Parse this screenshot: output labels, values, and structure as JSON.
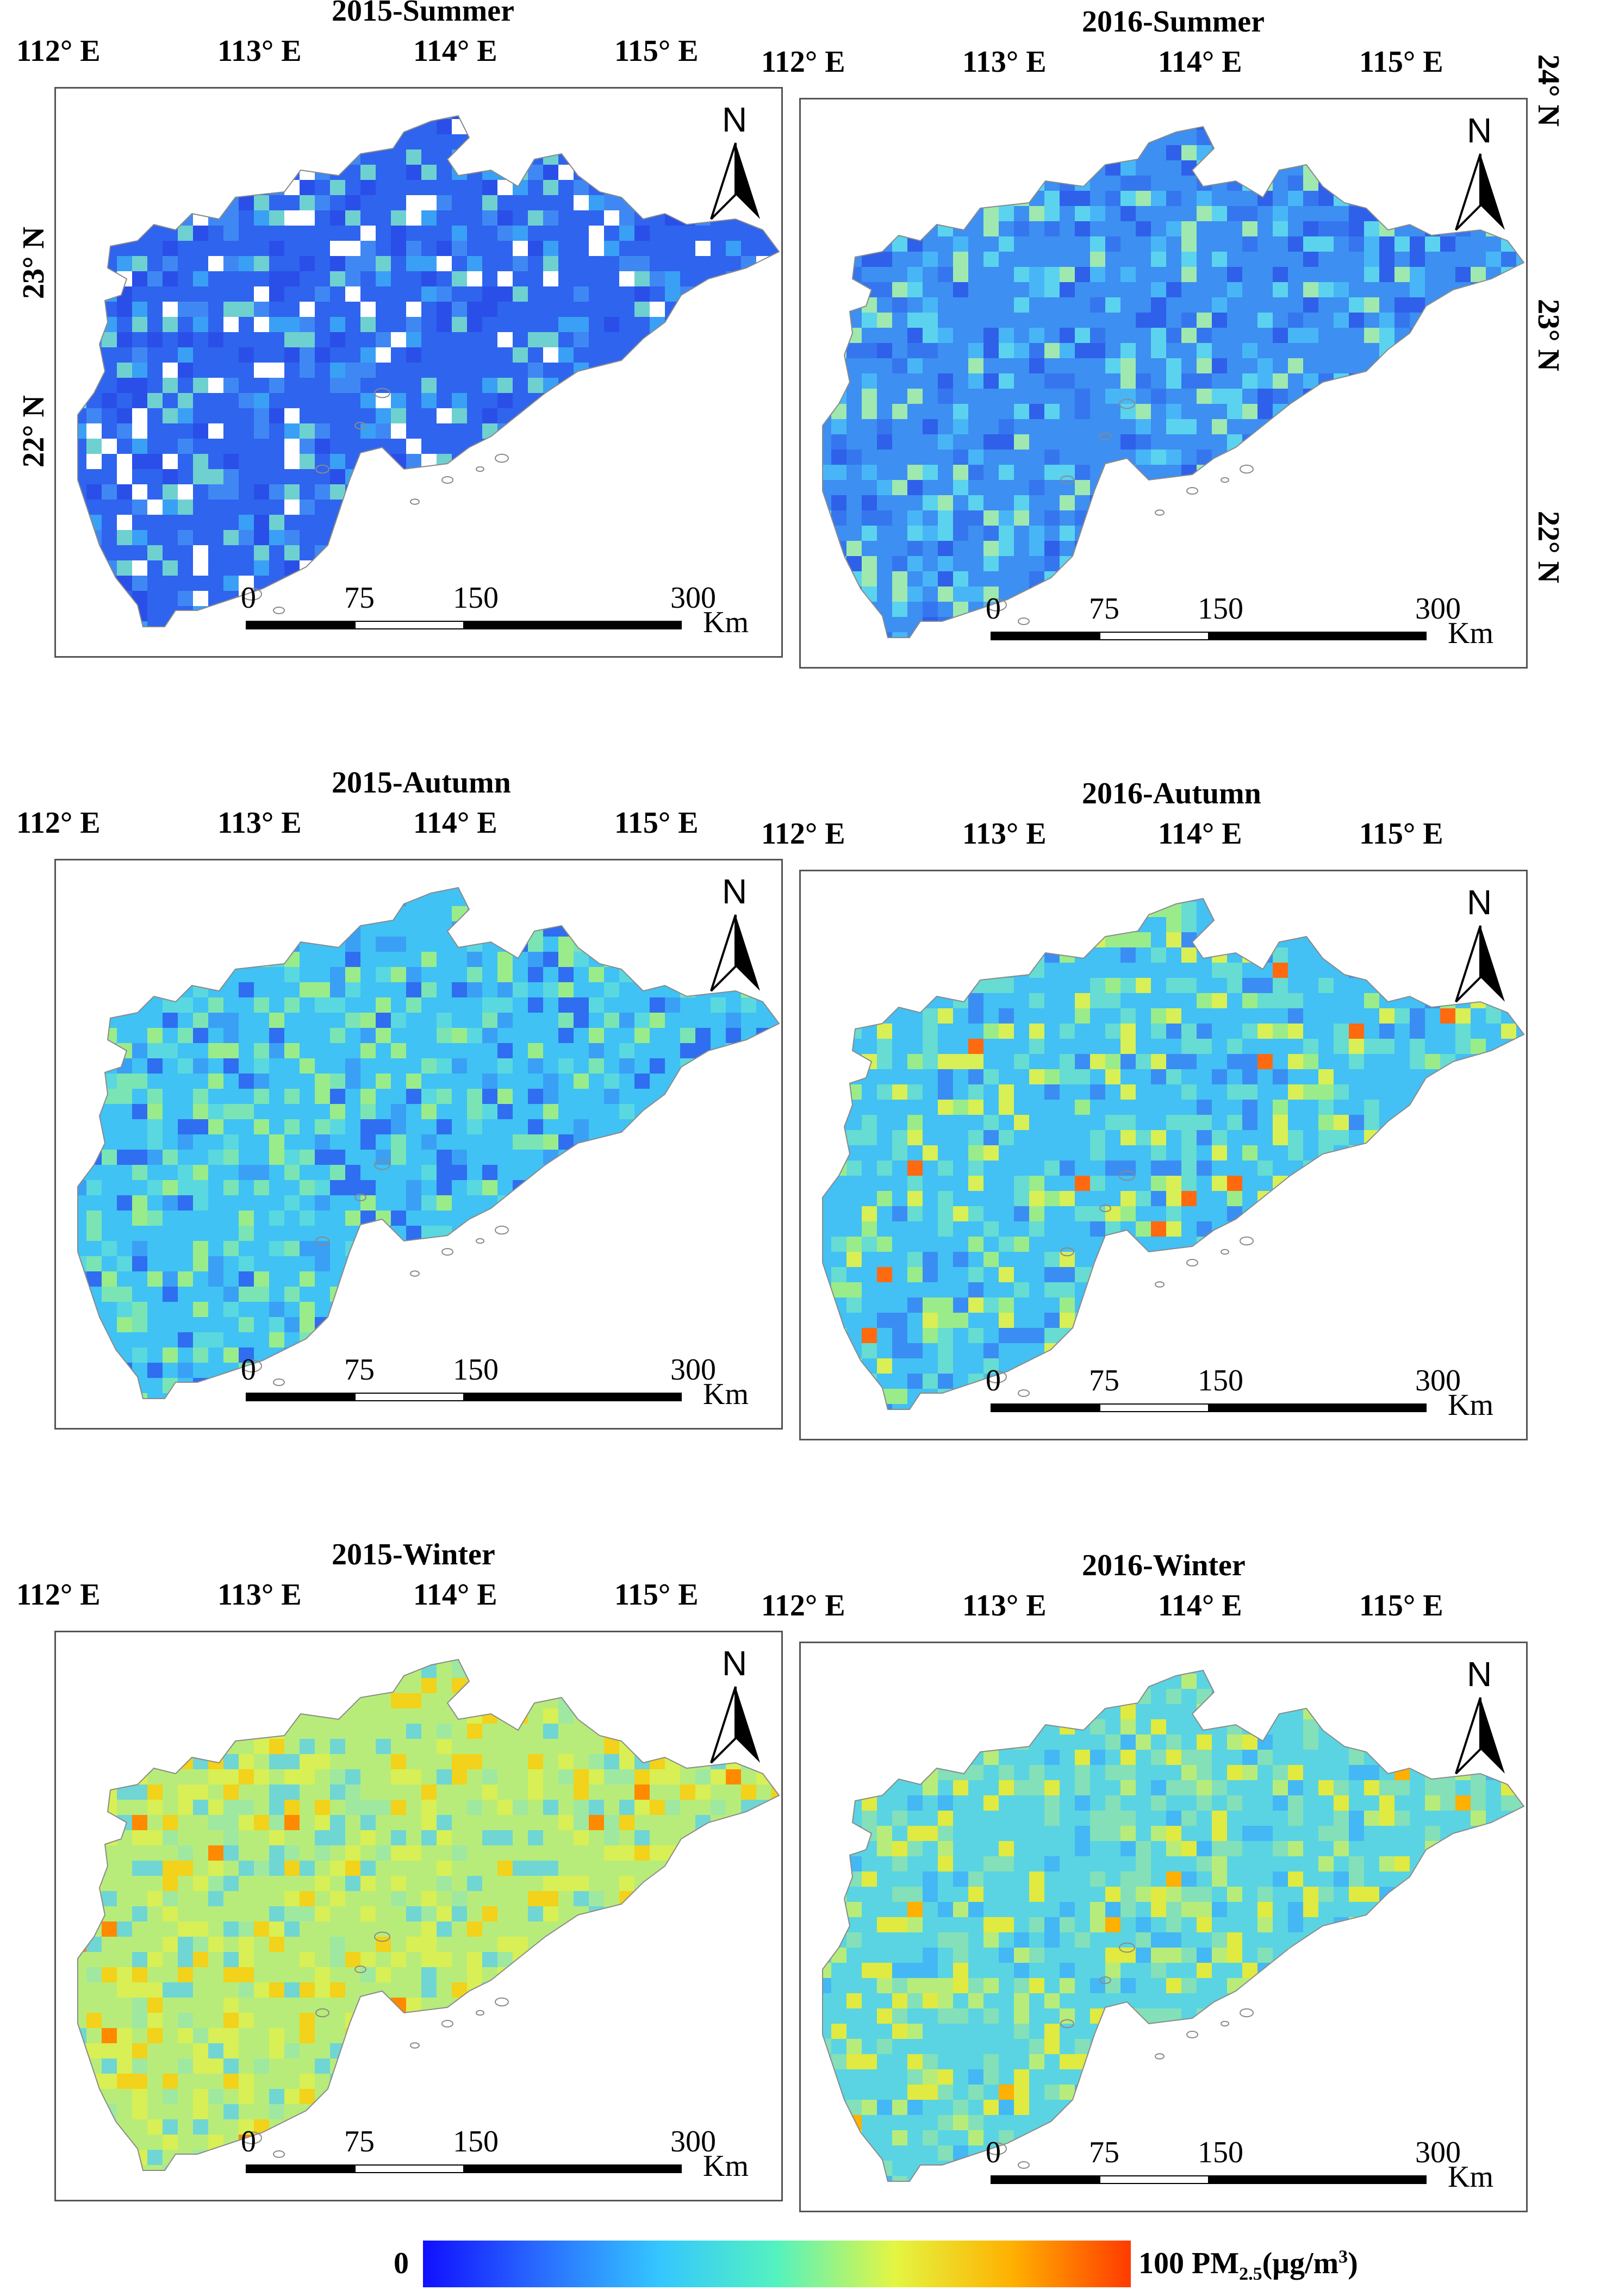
{
  "panels": [
    {
      "title": "2015-Summer",
      "theme": "summer15"
    },
    {
      "title": "2016-Summer",
      "theme": "summer16"
    },
    {
      "title": "2015-Autumn",
      "theme": "autumn15"
    },
    {
      "title": "2016-Autumn",
      "theme": "autumn16"
    },
    {
      "title": "2015-Winter",
      "theme": "winter15"
    },
    {
      "title": "2016-Winter",
      "theme": "winter16"
    }
  ],
  "lon_labels": [
    "112° E",
    "113° E",
    "114° E",
    "115° E"
  ],
  "lat_labels": [
    "24° N",
    "23° N",
    "22° N"
  ],
  "north_label": "N",
  "scalebar": {
    "ticks": [
      "0",
      "75",
      "150",
      "300"
    ],
    "unit": "Km"
  },
  "colorbar": {
    "min_label": "0",
    "max_label": "100 PM",
    "subscript": "2.5",
    "unit": "(μg/m",
    "superscript": "3",
    "close": ")",
    "colors": [
      "#1010ff",
      "#2a6cff",
      "#34c6ff",
      "#54f2c0",
      "#e4f542",
      "#ffb000",
      "#ff3b00"
    ]
  },
  "themes": {
    "summer15": {
      "base": "#2f64ee",
      "alt": [
        "#3aa0f5",
        "#2a4fe8",
        "#3f88f3",
        "#6fd0d0",
        "#ffffff"
      ]
    },
    "summer16": {
      "base": "#3d8ff2",
      "alt": [
        "#48b6f6",
        "#3576ef",
        "#5bd3ee",
        "#2f60ea",
        "#9fe8b0"
      ]
    },
    "autumn15": {
      "base": "#40c2f4",
      "alt": [
        "#5ad8df",
        "#7be4b4",
        "#3aa0f5",
        "#2f6ef0",
        "#9aec8a"
      ]
    },
    "autumn16": {
      "base": "#43c0f4",
      "alt": [
        "#66dcd2",
        "#9aec8a",
        "#d8ef55",
        "#3a8ef3",
        "#ff6a10"
      ]
    },
    "winter15": {
      "base": "#b8ec7a",
      "alt": [
        "#d8ef55",
        "#9fe8a0",
        "#6fd6d4",
        "#f2d21a",
        "#ff8a00"
      ]
    },
    "winter16": {
      "base": "#5ad4e2",
      "alt": [
        "#84e0b8",
        "#43b8f4",
        "#b8ec7a",
        "#e0ea40",
        "#ffb000"
      ]
    }
  }
}
